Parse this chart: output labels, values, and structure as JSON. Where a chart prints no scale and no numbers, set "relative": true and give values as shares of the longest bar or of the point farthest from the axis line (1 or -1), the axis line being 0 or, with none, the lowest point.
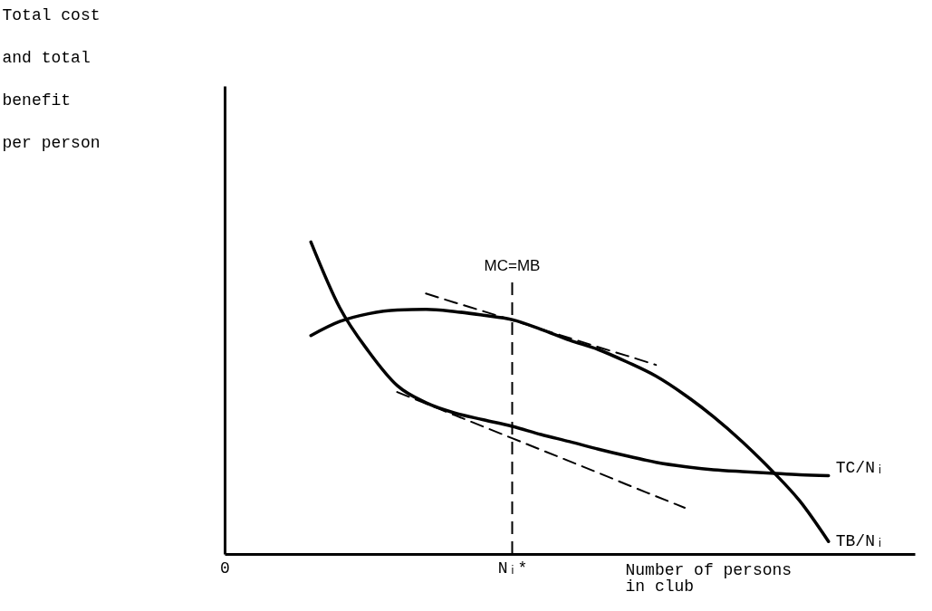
{
  "chart_data": {
    "type": "line",
    "relative": true,
    "ylabel": "Total cost and total benefit per person",
    "xlabel": "Number of persons in club",
    "categories": [
      "0",
      null,
      null,
      null,
      null,
      null,
      null,
      null,
      null,
      null,
      "Nᵢ*",
      null,
      null,
      null,
      null,
      null,
      null,
      null,
      null,
      null,
      null,
      null,
      null,
      null,
      null
    ],
    "grid": false,
    "marker": "none",
    "series": [
      {
        "name": "TC/Nᵢ",
        "color": "#000000",
        "values": [
          null,
          null,
          null,
          1.0,
          0.79,
          0.65,
          0.54,
          0.485,
          0.452,
          0.43,
          0.409,
          0.383,
          0.36,
          0.336,
          0.314,
          0.294,
          0.28,
          0.27,
          0.264,
          0.259,
          0.254,
          0.251,
          null,
          null,
          null
        ]
      },
      {
        "name": "TB/Nᵢ",
        "color": "#000000",
        "values": [
          null,
          null,
          null,
          0.7,
          0.745,
          0.77,
          0.782,
          0.784,
          0.777,
          0.765,
          0.751,
          0.72,
          0.685,
          0.655,
          0.615,
          0.57,
          0.51,
          0.44,
          0.36,
          0.27,
          0.17,
          0.04,
          null,
          null,
          null
        ]
      },
      {
        "color": "#000000",
        "line_style": "dashed",
        "values": [
          null,
          null,
          null,
          null,
          null,
          null,
          null,
          0.835,
          0.806,
          0.778,
          0.749,
          0.721,
          0.692,
          0.663,
          0.635,
          0.606,
          null,
          null,
          null,
          null,
          null,
          null,
          null,
          null,
          null
        ]
      },
      {
        "color": "#000000",
        "line_style": "dashed",
        "values": [
          null,
          null,
          null,
          null,
          null,
          null,
          0.519,
          0.482,
          0.445,
          0.408,
          0.371,
          0.334,
          0.297,
          0.26,
          0.222,
          0.185,
          0.148,
          null,
          null,
          null,
          null,
          null,
          null,
          null,
          null
        ]
      }
    ],
    "ref_lines": [
      {
        "axis": "x",
        "value": "Nᵢ*",
        "line_style": "dashed",
        "color": "#000000"
      }
    ],
    "annotations": [
      "MC=MB"
    ]
  }
}
